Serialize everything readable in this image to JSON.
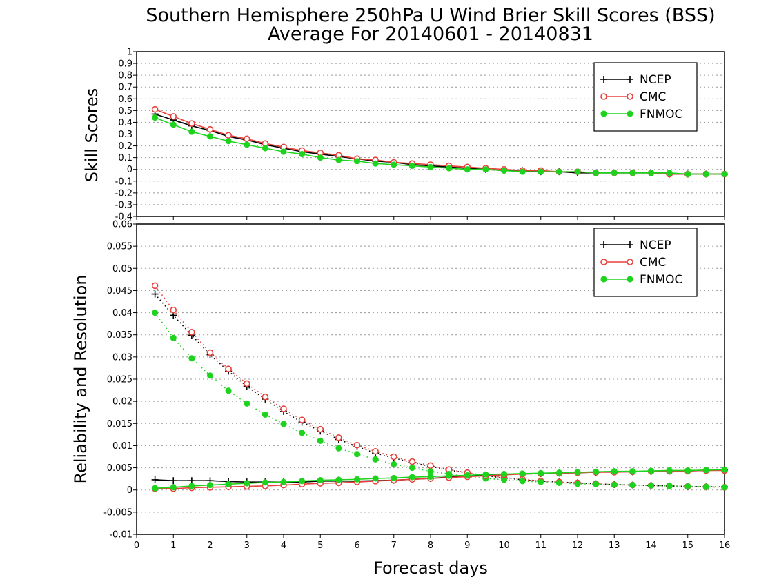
{
  "title_line1": "Southern Hemisphere 250hPa U Wind Brier Skill Scores (BSS)",
  "title_line2": "Average For 20140601 - 20140831",
  "xlabel": "Forecast days",
  "chart_data": [
    {
      "type": "line",
      "ylabel": "Skill Scores",
      "xlim": [
        0,
        16
      ],
      "ylim": [
        -0.4,
        1
      ],
      "x_ticks": [
        "0",
        "1",
        "2",
        "3",
        "4",
        "5",
        "6",
        "7",
        "8",
        "9",
        "10",
        "11",
        "12",
        "13",
        "14",
        "15",
        "16"
      ],
      "y_ticks": [
        "-0.4",
        "-0.3",
        "-0.2",
        "-0.1",
        "0",
        "0.1",
        "0.2",
        "0.3",
        "0.4",
        "0.5",
        "0.6",
        "0.7",
        "0.8",
        "0.9",
        "1"
      ],
      "grid": true,
      "legend_position": "top-right",
      "x": [
        0.5,
        1,
        1.5,
        2,
        2.5,
        3,
        3.5,
        4,
        4.5,
        5,
        5.5,
        6,
        6.5,
        7,
        7.5,
        8,
        8.5,
        9,
        9.5,
        10,
        10.5,
        11,
        11.5,
        12,
        12.5,
        13,
        13.5,
        14,
        14.5,
        15,
        15.5,
        16
      ],
      "series": [
        {
          "name": "NCEP",
          "color": "#000000",
          "marker": "plus",
          "style": "solid",
          "values": [
            0.47,
            0.42,
            0.37,
            0.33,
            0.28,
            0.25,
            0.21,
            0.18,
            0.15,
            0.13,
            0.11,
            0.09,
            0.07,
            0.06,
            0.04,
            0.03,
            0.02,
            0.01,
            0.0,
            -0.01,
            -0.01,
            -0.02,
            -0.02,
            -0.03,
            -0.03,
            -0.03,
            -0.03,
            -0.03,
            -0.04,
            -0.04,
            -0.04,
            -0.04
          ]
        },
        {
          "name": "CMC",
          "color": "#e8413c",
          "marker": "open-circle",
          "style": "solid",
          "values": [
            0.51,
            0.45,
            0.39,
            0.34,
            0.29,
            0.26,
            0.22,
            0.19,
            0.16,
            0.14,
            0.12,
            0.09,
            0.08,
            0.06,
            0.05,
            0.04,
            0.03,
            0.02,
            0.01,
            0.0,
            -0.01,
            -0.01,
            -0.02,
            -0.02,
            -0.03,
            -0.03,
            -0.03,
            -0.03,
            -0.04,
            -0.04,
            -0.04,
            -0.04
          ]
        },
        {
          "name": "FNMOC",
          "color": "#1ed31e",
          "marker": "filled-circle",
          "style": "solid",
          "values": [
            0.44,
            0.38,
            0.32,
            0.28,
            0.24,
            0.21,
            0.18,
            0.15,
            0.13,
            0.1,
            0.08,
            0.07,
            0.05,
            0.04,
            0.03,
            0.02,
            0.01,
            0.0,
            0.0,
            -0.01,
            -0.02,
            -0.02,
            -0.02,
            -0.02,
            -0.03,
            -0.03,
            -0.03,
            -0.03,
            -0.03,
            -0.04,
            -0.04,
            -0.04
          ]
        }
      ]
    },
    {
      "type": "line",
      "ylabel": "Reliability and Resolution",
      "xlim": [
        0,
        16
      ],
      "ylim": [
        -0.01,
        0.06
      ],
      "x_ticks": [
        "0",
        "1",
        "2",
        "3",
        "4",
        "5",
        "6",
        "7",
        "8",
        "9",
        "10",
        "11",
        "12",
        "13",
        "14",
        "15",
        "16"
      ],
      "y_ticks": [
        "-0.01",
        "-0.005",
        "0",
        "0.005",
        "0.01",
        "0.015",
        "0.02",
        "0.025",
        "0.03",
        "0.035",
        "0.04",
        "0.045",
        "0.05",
        "0.055",
        "0.06"
      ],
      "grid": true,
      "legend_position": "top-right",
      "x": [
        0.5,
        1,
        1.5,
        2,
        2.5,
        3,
        3.5,
        4,
        4.5,
        5,
        5.5,
        6,
        6.5,
        7,
        7.5,
        8,
        8.5,
        9,
        9.5,
        10,
        10.5,
        11,
        11.5,
        12,
        12.5,
        13,
        13.5,
        14,
        14.5,
        15,
        15.5,
        16
      ],
      "series": [
        {
          "name": "NCEP",
          "color": "#000000",
          "marker": "plus",
          "style": "dotted",
          "values": [
            0.0442,
            0.0394,
            0.0349,
            0.0305,
            0.0268,
            0.0234,
            0.0205,
            0.0177,
            0.0153,
            0.0133,
            0.0114,
            0.0098,
            0.0083,
            0.0072,
            0.0062,
            0.0053,
            0.0045,
            0.0038,
            0.0032,
            0.0027,
            0.0023,
            0.002,
            0.0018,
            0.0016,
            0.0014,
            0.0012,
            0.0011,
            0.001,
            0.0009,
            0.0008,
            0.0007,
            0.0007
          ]
        },
        {
          "name": "CMC",
          "color": "#e8413c",
          "marker": "open-circle",
          "style": "dotted",
          "values": [
            0.0461,
            0.0406,
            0.0356,
            0.031,
            0.0273,
            0.024,
            0.021,
            0.0183,
            0.0158,
            0.0137,
            0.0118,
            0.0101,
            0.0087,
            0.0075,
            0.0064,
            0.0055,
            0.0046,
            0.0039,
            0.0033,
            0.0028,
            0.0024,
            0.002,
            0.0018,
            0.0016,
            0.0014,
            0.0012,
            0.0011,
            0.001,
            0.0009,
            0.0008,
            0.0007,
            0.0006
          ]
        },
        {
          "name": "FNMOC",
          "color": "#1ed31e",
          "marker": "filled-circle",
          "style": "dotted",
          "values": [
            0.04,
            0.0343,
            0.0297,
            0.0258,
            0.0224,
            0.0195,
            0.017,
            0.0149,
            0.0129,
            0.0111,
            0.0094,
            0.0081,
            0.0069,
            0.0058,
            0.005,
            0.0042,
            0.0036,
            0.003,
            0.0026,
            0.0023,
            0.002,
            0.0018,
            0.0016,
            0.0014,
            0.0013,
            0.0012,
            0.0011,
            0.001,
            0.0009,
            0.0008,
            0.0007,
            0.0006
          ]
        },
        {
          "name": "",
          "color": "#000000",
          "marker": "plus",
          "style": "solid",
          "values": [
            0.0023,
            0.0021,
            0.0021,
            0.0021,
            0.0019,
            0.0018,
            0.0018,
            0.0018,
            0.0018,
            0.002,
            0.002,
            0.002,
            0.0021,
            0.0022,
            0.0024,
            0.0026,
            0.0029,
            0.0031,
            0.0033,
            0.0035,
            0.0036,
            0.0037,
            0.0038,
            0.0039,
            0.004,
            0.0041,
            0.0041,
            0.0042,
            0.0043,
            0.0043,
            0.0044,
            0.0045
          ]
        },
        {
          "name": "",
          "color": "#e8413c",
          "marker": "open-circle",
          "style": "solid",
          "values": [
            0.0003,
            0.0003,
            0.0005,
            0.0006,
            0.0007,
            0.0008,
            0.0009,
            0.0011,
            0.0013,
            0.0015,
            0.0016,
            0.0018,
            0.002,
            0.0022,
            0.0024,
            0.0026,
            0.0028,
            0.003,
            0.0032,
            0.0034,
            0.0036,
            0.0037,
            0.0038,
            0.0039,
            0.004,
            0.004,
            0.0041,
            0.0042,
            0.0042,
            0.0043,
            0.0044,
            0.0044
          ]
        },
        {
          "name": "",
          "color": "#1ed31e",
          "marker": "filled-circle",
          "style": "solid",
          "values": [
            0.0004,
            0.0006,
            0.0009,
            0.0011,
            0.0013,
            0.0015,
            0.0017,
            0.0018,
            0.002,
            0.0022,
            0.0023,
            0.0024,
            0.0026,
            0.0027,
            0.0029,
            0.003,
            0.0032,
            0.0033,
            0.0035,
            0.0036,
            0.0037,
            0.0038,
            0.0039,
            0.004,
            0.0041,
            0.0042,
            0.0042,
            0.0043,
            0.0044,
            0.0044,
            0.0045,
            0.0046
          ]
        }
      ]
    }
  ]
}
